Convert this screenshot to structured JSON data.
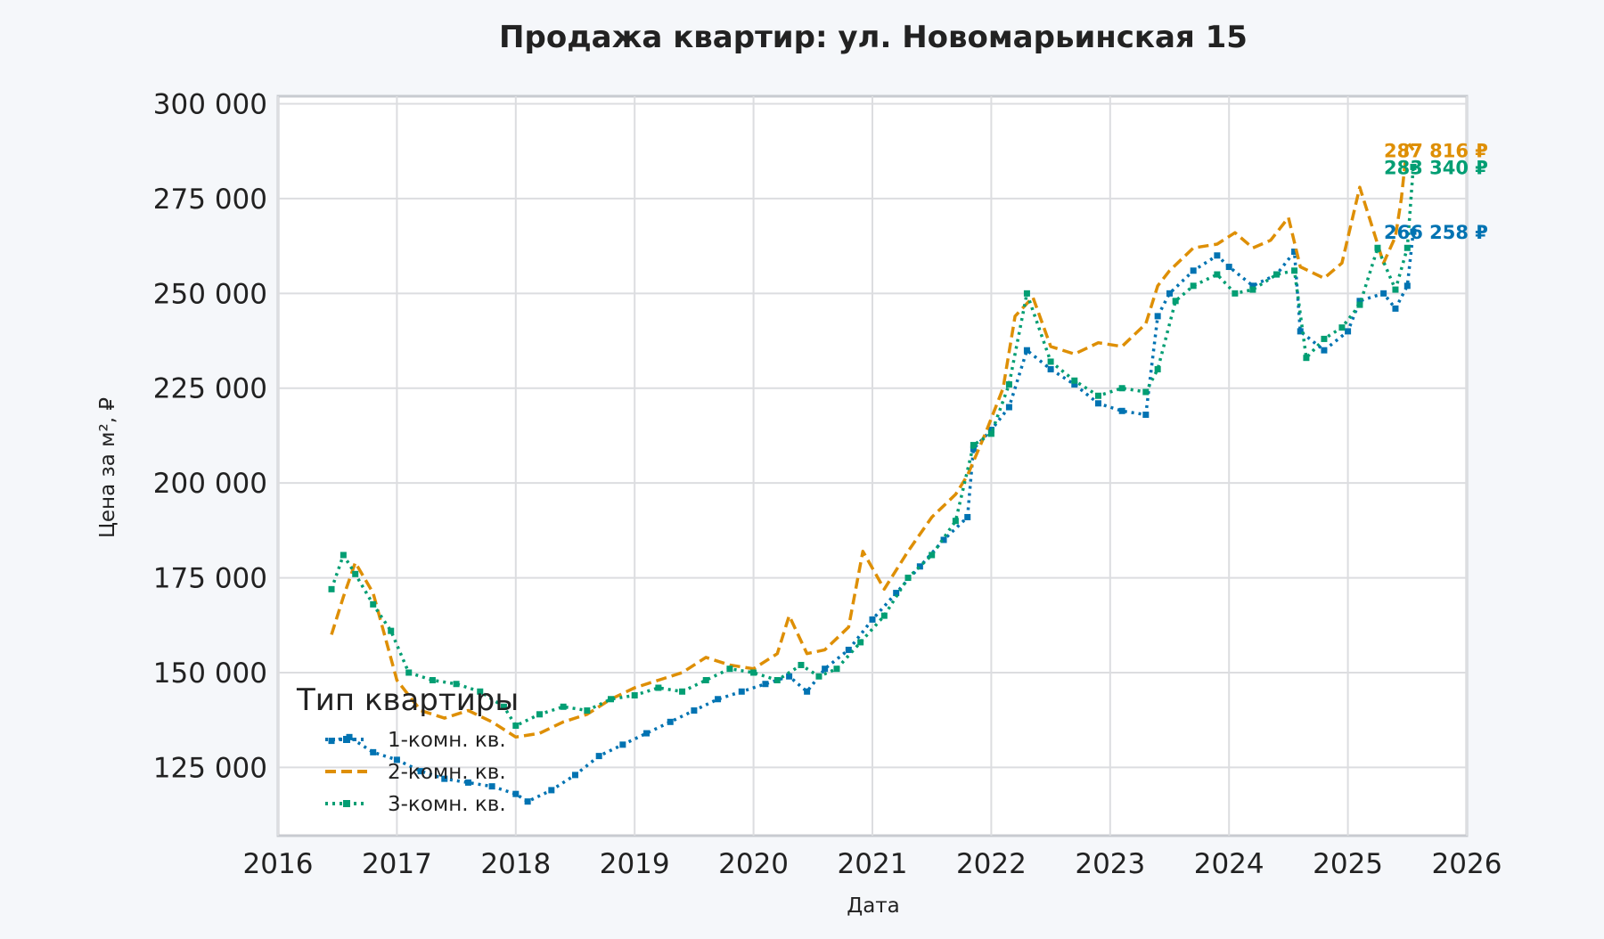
{
  "chart_data": {
    "type": "line",
    "title": "Продажа квартир: ул. Новомарьинская 15",
    "xlabel": "Дата",
    "ylabel": "Цена за м², ₽",
    "xlim": [
      2016,
      2026
    ],
    "ylim": [
      107000,
      302000
    ],
    "x_ticks": [
      2016,
      2017,
      2018,
      2019,
      2020,
      2021,
      2022,
      2023,
      2024,
      2025,
      2026
    ],
    "x_tick_labels": [
      "2016",
      "2017",
      "2018",
      "2019",
      "2020",
      "2021",
      "2022",
      "2023",
      "2024",
      "2025",
      "2026"
    ],
    "y_ticks": [
      125000,
      150000,
      175000,
      200000,
      225000,
      250000,
      275000,
      300000
    ],
    "y_tick_labels": [
      "125 000",
      "150 000",
      "175 000",
      "200 000",
      "225 000",
      "250 000",
      "275 000",
      "300 000"
    ],
    "grid": true,
    "legend": {
      "title": "Тип квартиры",
      "position": "lower-left",
      "entries": [
        "1-комн. кв.",
        "2-комн. кв.",
        "3-комн. кв."
      ]
    },
    "series": [
      {
        "name": "1-комн. кв.",
        "color": "#0173b2",
        "dash": "dotted-marker",
        "x": [
          2016.45,
          2016.6,
          2016.8,
          2017.0,
          2017.2,
          2017.4,
          2017.6,
          2017.8,
          2018.0,
          2018.1,
          2018.3,
          2018.5,
          2018.7,
          2018.9,
          2019.1,
          2019.3,
          2019.5,
          2019.7,
          2019.9,
          2020.1,
          2020.3,
          2020.45,
          2020.6,
          2020.8,
          2021.0,
          2021.2,
          2021.4,
          2021.6,
          2021.8,
          2021.85,
          2022.0,
          2022.15,
          2022.3,
          2022.5,
          2022.7,
          2022.9,
          2023.1,
          2023.3,
          2023.4,
          2023.5,
          2023.7,
          2023.9,
          2024.0,
          2024.2,
          2024.4,
          2024.55,
          2024.6,
          2024.8,
          2025.0,
          2025.1,
          2025.3,
          2025.4,
          2025.5,
          2025.55
        ],
        "y": [
          132000,
          133000,
          129000,
          127000,
          124000,
          122000,
          121000,
          120000,
          118000,
          116000,
          119000,
          123000,
          128000,
          131000,
          134000,
          137000,
          140000,
          143000,
          145000,
          147000,
          149000,
          145000,
          151000,
          156000,
          164000,
          171000,
          178000,
          185000,
          191000,
          209000,
          214000,
          220000,
          235000,
          230000,
          226000,
          221000,
          219000,
          218000,
          244000,
          250000,
          256000,
          260000,
          257000,
          252000,
          255000,
          261000,
          240000,
          235000,
          240000,
          248000,
          250000,
          246000,
          252000,
          266258
        ]
      },
      {
        "name": "2-комн. кв.",
        "color": "#de8f05",
        "dash": "dashed",
        "x": [
          2016.45,
          2016.55,
          2016.65,
          2016.8,
          2017.0,
          2017.2,
          2017.4,
          2017.6,
          2017.8,
          2018.0,
          2018.2,
          2018.4,
          2018.6,
          2018.8,
          2019.0,
          2019.2,
          2019.4,
          2019.6,
          2019.8,
          2020.0,
          2020.2,
          2020.3,
          2020.45,
          2020.6,
          2020.8,
          2020.92,
          2021.1,
          2021.3,
          2021.5,
          2021.7,
          2021.8,
          2021.95,
          2022.1,
          2022.2,
          2022.35,
          2022.5,
          2022.7,
          2022.9,
          2023.1,
          2023.3,
          2023.4,
          2023.5,
          2023.7,
          2023.9,
          2024.05,
          2024.2,
          2024.35,
          2024.5,
          2024.6,
          2024.8,
          2024.95,
          2025.1,
          2025.2,
          2025.3,
          2025.4,
          2025.45,
          2025.5,
          2025.55
        ],
        "y": [
          160000,
          170000,
          179000,
          171000,
          148000,
          140000,
          138000,
          140000,
          137000,
          133000,
          134000,
          137000,
          139000,
          143000,
          146000,
          148000,
          150000,
          154000,
          152000,
          151000,
          155000,
          165000,
          155000,
          156000,
          162000,
          182000,
          172000,
          182000,
          191000,
          197000,
          202000,
          213000,
          225000,
          244000,
          249000,
          236000,
          234000,
          237000,
          236000,
          242000,
          252000,
          256000,
          262000,
          263000,
          266000,
          262000,
          264000,
          270000,
          257000,
          254000,
          258000,
          278000,
          268000,
          258000,
          265000,
          275000,
          290000,
          287816
        ]
      },
      {
        "name": "3-комн. кв.",
        "color": "#029e73",
        "dash": "dotted-marker",
        "x": [
          2016.45,
          2016.55,
          2016.65,
          2016.8,
          2016.95,
          2017.1,
          2017.3,
          2017.5,
          2017.7,
          2017.9,
          2018.0,
          2018.2,
          2018.4,
          2018.6,
          2018.8,
          2019.0,
          2019.2,
          2019.4,
          2019.6,
          2019.8,
          2020.0,
          2020.2,
          2020.4,
          2020.55,
          2020.7,
          2020.9,
          2021.1,
          2021.3,
          2021.5,
          2021.7,
          2021.85,
          2022.0,
          2022.15,
          2022.3,
          2022.5,
          2022.7,
          2022.9,
          2023.1,
          2023.3,
          2023.4,
          2023.55,
          2023.7,
          2023.9,
          2024.05,
          2024.2,
          2024.4,
          2024.55,
          2024.65,
          2024.8,
          2024.95,
          2025.1,
          2025.25,
          2025.4,
          2025.5,
          2025.55
        ],
        "y": [
          172000,
          181000,
          176000,
          168000,
          161000,
          150000,
          148000,
          147000,
          145000,
          141000,
          136000,
          139000,
          141000,
          140000,
          143000,
          144000,
          146000,
          145000,
          148000,
          151000,
          150000,
          148000,
          152000,
          149000,
          151000,
          158000,
          165000,
          175000,
          181000,
          190000,
          210000,
          213000,
          226000,
          250000,
          232000,
          227000,
          223000,
          225000,
          224000,
          230000,
          248000,
          252000,
          255000,
          250000,
          251000,
          255000,
          256000,
          233000,
          238000,
          241000,
          247000,
          262000,
          251000,
          262000,
          283340
        ]
      }
    ],
    "annotations": [
      {
        "text": "283 340 ₽",
        "x": 2025.55,
        "y": 283340,
        "color": "#029e73"
      },
      {
        "text": "266 258 ₽",
        "x": 2025.55,
        "y": 266258,
        "color": "#0173b2"
      },
      {
        "text": "287 816 ₽",
        "x": 2025.55,
        "y": 287816,
        "color": "#de8f05"
      }
    ]
  }
}
